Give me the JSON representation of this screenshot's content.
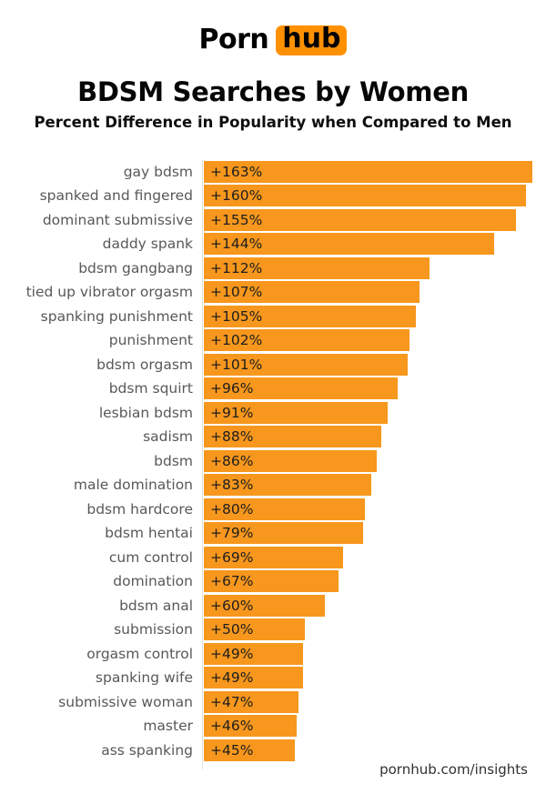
{
  "logo": {
    "part1": "Porn",
    "part2": "hub"
  },
  "header": {
    "title": "BDSM Searches by Women",
    "subtitle": "Percent Difference in Popularity when Compared to Men"
  },
  "footer": {
    "text": "pornhub.com/insights"
  },
  "colors": {
    "bar": "#f7971d",
    "logo_box": "#ff9000",
    "category_label": "#58585b",
    "value_label": "#1e1e1e",
    "axis_line": "#e2e2e2"
  },
  "chart_data": {
    "type": "bar",
    "orientation": "horizontal",
    "title": "BDSM Searches by Women",
    "subtitle": "Percent Difference in Popularity when Compared to Men",
    "xlabel": "",
    "ylabel": "",
    "xlim": [
      0,
      163
    ],
    "grid": false,
    "legend": false,
    "value_prefix": "+",
    "value_suffix": "%",
    "categories": [
      "gay bdsm",
      "spanked and fingered",
      "dominant submissive",
      "daddy spank",
      "bdsm gangbang",
      "tied up vibrator orgasm",
      "spanking punishment",
      "punishment",
      "bdsm orgasm",
      "bdsm squirt",
      "lesbian bdsm",
      "sadism",
      "bdsm",
      "male domination",
      "bdsm hardcore",
      "bdsm hentai",
      "cum control",
      "domination",
      "bdsm anal",
      "submission",
      "orgasm control",
      "spanking wife",
      "submissive woman",
      "master",
      "ass spanking"
    ],
    "values": [
      163,
      160,
      155,
      144,
      112,
      107,
      105,
      102,
      101,
      96,
      91,
      88,
      86,
      83,
      80,
      79,
      69,
      67,
      60,
      50,
      49,
      49,
      47,
      46,
      45
    ],
    "value_labels": [
      "+163%",
      "+160%",
      "+155%",
      "+144%",
      "+112%",
      "+107%",
      "+105%",
      "+102%",
      "+101%",
      "+96%",
      "+91%",
      "+88%",
      "+86%",
      "+83%",
      "+80%",
      "+79%",
      "+69%",
      "+67%",
      "+60%",
      "+50%",
      "+49%",
      "+49%",
      "+47%",
      "+46%",
      "+45%"
    ]
  }
}
